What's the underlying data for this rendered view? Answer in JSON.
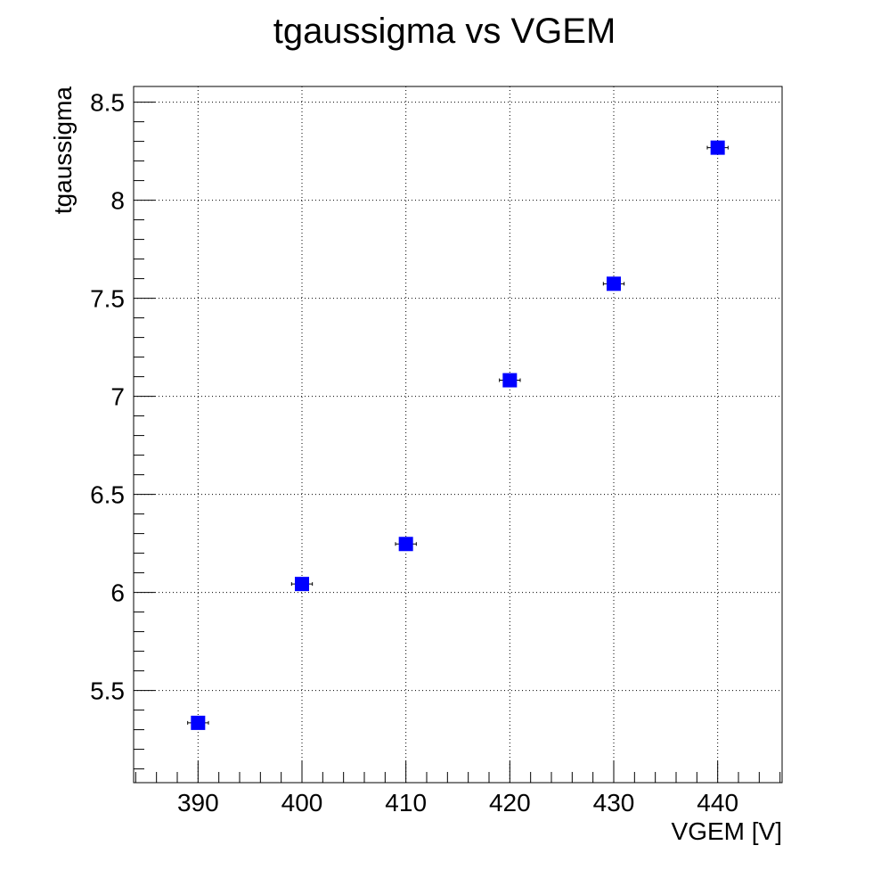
{
  "chart_data": {
    "type": "scatter",
    "title": "tgaussigma vs VGEM",
    "xlabel": "VGEM [V]",
    "ylabel": "tgaussigma",
    "xlim": [
      383.8,
      446.2
    ],
    "ylim": [
      5.03,
      8.58
    ],
    "x_major_ticks": [
      390,
      400,
      410,
      420,
      430,
      440
    ],
    "y_major_ticks": [
      5.5,
      6,
      6.5,
      7,
      7.5,
      8,
      8.5
    ],
    "y_tick_labels": [
      "5.5",
      "6",
      "6.5",
      "7",
      "7.5",
      "8",
      "8.5"
    ],
    "x_minor_step": 2,
    "y_minor_step": 0.1,
    "grid": true,
    "marker": "square",
    "marker_color": "#0000ff",
    "x_error": 1,
    "series": [
      {
        "name": "tgaussigma",
        "x": [
          390,
          400,
          410,
          420,
          430,
          440
        ],
        "y": [
          5.335,
          6.043,
          6.247,
          7.082,
          7.574,
          8.268
        ]
      }
    ]
  }
}
